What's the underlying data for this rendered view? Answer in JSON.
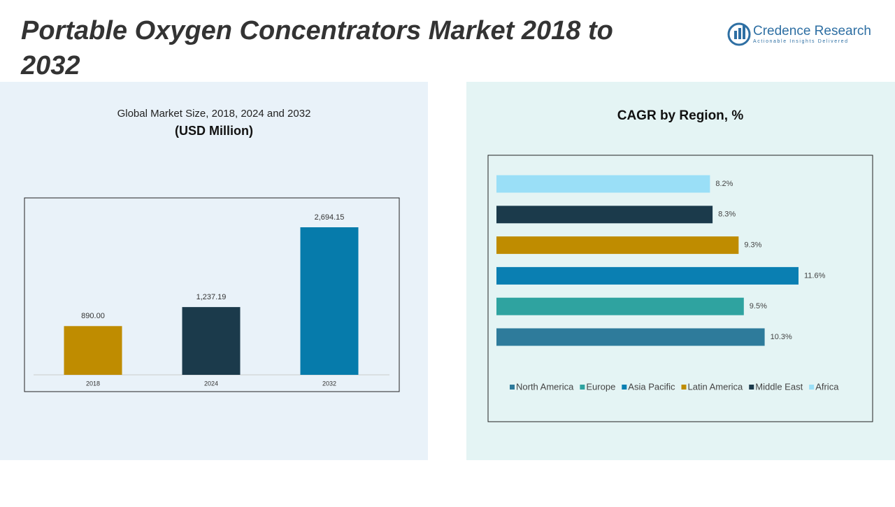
{
  "title": "Portable Oxygen Concentrators Market 2018 to 2032",
  "logo": {
    "name": "Credence Research",
    "tagline": "Actionable Insights Delivered"
  },
  "chart_data": [
    {
      "type": "bar",
      "title": "Global Market Size, 2018, 2024 and 2032",
      "subtitle": "(USD Million)",
      "categories": [
        "2018",
        "2024",
        "2032"
      ],
      "values": [
        890,
        1237.19,
        2694.15
      ],
      "value_labels": [
        "890.00",
        "1,237.19",
        "2,694.15"
      ],
      "colors": [
        "#bf8c00",
        "#1b3a4b",
        "#067bab"
      ]
    },
    {
      "type": "hbar",
      "title": "CAGR by Region, %",
      "categories": [
        "North America",
        "Europe",
        "Asia Pacific",
        "Latin America",
        "Middle East",
        "Africa"
      ],
      "values": [
        10.3,
        9.5,
        11.6,
        9.3,
        8.3,
        8.2
      ],
      "value_labels": [
        "10.3%",
        "9.5%",
        "11.6%",
        "9.3%",
        "8.3%",
        "8.2%"
      ],
      "colors": [
        "#2e7b9b",
        "#2fa3a0",
        "#0a7fb2",
        "#bf8c00",
        "#1b3a4b",
        "#9adff7"
      ]
    }
  ]
}
